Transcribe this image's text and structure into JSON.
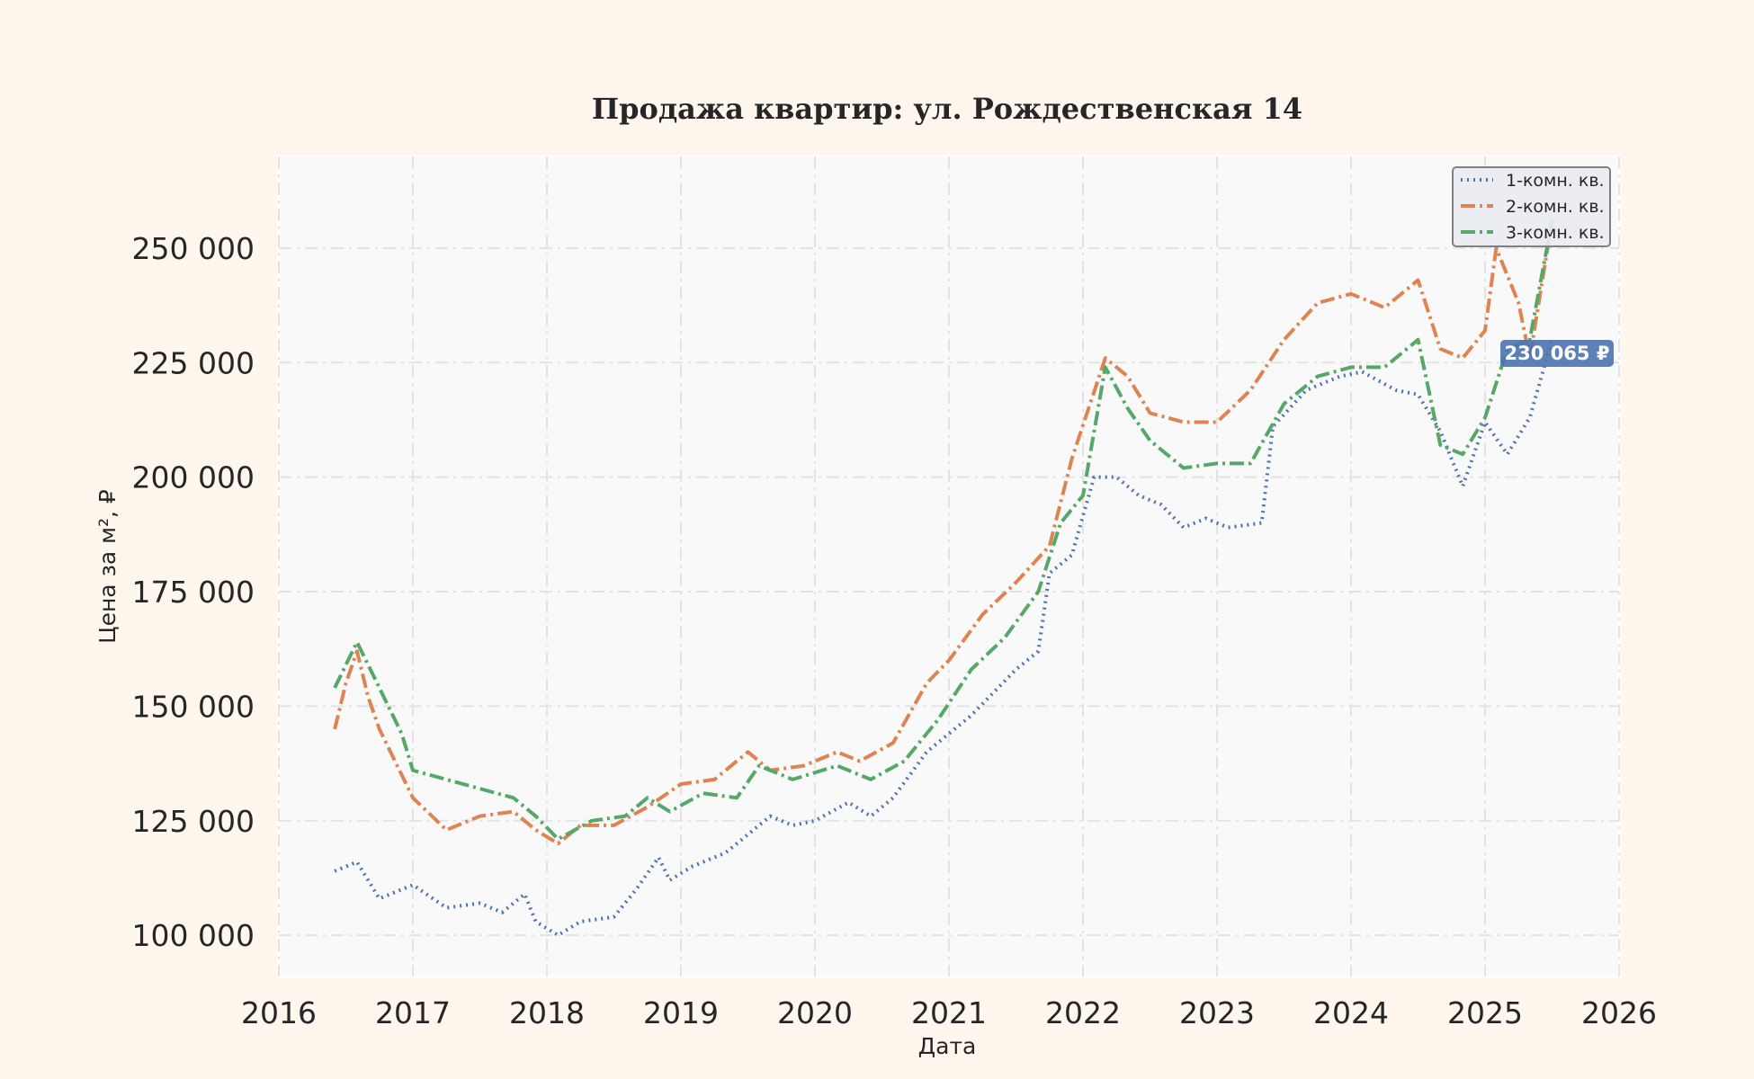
{
  "chart_data": {
    "type": "line",
    "title": "Продажа квартир: ул. Рождественская 14",
    "xlabel": "Дата",
    "ylabel": "Цена за м², ₽",
    "xlim": [
      "2016",
      "2026"
    ],
    "ylim": [
      91000,
      270000
    ],
    "x_ticks": [
      "2016",
      "2017",
      "2018",
      "2019",
      "2020",
      "2021",
      "2022",
      "2023",
      "2024",
      "2025",
      "2026"
    ],
    "y_ticks": [
      100000,
      125000,
      150000,
      175000,
      200000,
      225000,
      250000
    ],
    "y_tick_labels": [
      "100 000",
      "125 000",
      "150 000",
      "175 000",
      "200 000",
      "225 000",
      "250 000"
    ],
    "grid": true,
    "legend_position": "top-right",
    "last_value_label": "230 065 ₽",
    "series": [
      {
        "name": "1-комн. кв.",
        "color": "#4c72b0",
        "style": "dotted",
        "points": [
          [
            "2016-06",
            114000
          ],
          [
            "2016-08",
            116000
          ],
          [
            "2016-10",
            108000
          ],
          [
            "2017-01",
            111000
          ],
          [
            "2017-04",
            106000
          ],
          [
            "2017-07",
            107000
          ],
          [
            "2017-09",
            105000
          ],
          [
            "2017-11",
            109000
          ],
          [
            "2017-12",
            103000
          ],
          [
            "2018-02",
            100000
          ],
          [
            "2018-04",
            103000
          ],
          [
            "2018-07",
            104000
          ],
          [
            "2018-09",
            110000
          ],
          [
            "2018-11",
            117000
          ],
          [
            "2018-12",
            112000
          ],
          [
            "2019-02",
            115000
          ],
          [
            "2019-05",
            118000
          ],
          [
            "2019-07",
            122000
          ],
          [
            "2019-09",
            126000
          ],
          [
            "2019-11",
            124000
          ],
          [
            "2020-01",
            125000
          ],
          [
            "2020-04",
            129000
          ],
          [
            "2020-06",
            126000
          ],
          [
            "2020-08",
            130000
          ],
          [
            "2020-11",
            140000
          ],
          [
            "2021-01",
            144000
          ],
          [
            "2021-03",
            148000
          ],
          [
            "2021-05",
            153000
          ],
          [
            "2021-07",
            158000
          ],
          [
            "2021-09",
            162000
          ],
          [
            "2021-10",
            179000
          ],
          [
            "2021-12",
            183000
          ],
          [
            "2022-02",
            200000
          ],
          [
            "2022-04",
            200000
          ],
          [
            "2022-06",
            196000
          ],
          [
            "2022-08",
            194000
          ],
          [
            "2022-10",
            189000
          ],
          [
            "2022-12",
            191000
          ],
          [
            "2023-02",
            189000
          ],
          [
            "2023-05",
            190000
          ],
          [
            "2023-06",
            211000
          ],
          [
            "2023-09",
            219000
          ],
          [
            "2023-12",
            222000
          ],
          [
            "2024-02",
            223000
          ],
          [
            "2024-05",
            219000
          ],
          [
            "2024-07",
            218000
          ],
          [
            "2024-09",
            210000
          ],
          [
            "2024-11",
            198000
          ],
          [
            "2025-01",
            212000
          ],
          [
            "2025-03",
            205000
          ],
          [
            "2025-05",
            213000
          ],
          [
            "2025-07",
            230065
          ]
        ]
      },
      {
        "name": "2-комн. кв.",
        "color": "#dd8452",
        "style": "dashdot",
        "points": [
          [
            "2016-06",
            145000
          ],
          [
            "2016-07",
            155000
          ],
          [
            "2016-08",
            162000
          ],
          [
            "2016-09",
            152000
          ],
          [
            "2016-10",
            145000
          ],
          [
            "2016-12",
            135000
          ],
          [
            "2017-01",
            130000
          ],
          [
            "2017-04",
            123000
          ],
          [
            "2017-07",
            126000
          ],
          [
            "2017-10",
            127000
          ],
          [
            "2017-12",
            123000
          ],
          [
            "2018-02",
            120000
          ],
          [
            "2018-04",
            124000
          ],
          [
            "2018-07",
            124000
          ],
          [
            "2018-10",
            128000
          ],
          [
            "2019-01",
            133000
          ],
          [
            "2019-04",
            134000
          ],
          [
            "2019-07",
            140000
          ],
          [
            "2019-09",
            136000
          ],
          [
            "2019-12",
            137000
          ],
          [
            "2020-03",
            140000
          ],
          [
            "2020-05",
            138000
          ],
          [
            "2020-08",
            142000
          ],
          [
            "2020-11",
            155000
          ],
          [
            "2021-01",
            160000
          ],
          [
            "2021-04",
            170000
          ],
          [
            "2021-07",
            177000
          ],
          [
            "2021-10",
            185000
          ],
          [
            "2021-12",
            204000
          ],
          [
            "2022-03",
            226000
          ],
          [
            "2022-05",
            222000
          ],
          [
            "2022-07",
            214000
          ],
          [
            "2022-10",
            212000
          ],
          [
            "2023-01",
            212000
          ],
          [
            "2023-04",
            219000
          ],
          [
            "2023-07",
            230000
          ],
          [
            "2023-10",
            238000
          ],
          [
            "2024-01",
            240000
          ],
          [
            "2024-04",
            237000
          ],
          [
            "2024-07",
            243000
          ],
          [
            "2024-09",
            228000
          ],
          [
            "2024-11",
            226000
          ],
          [
            "2025-01",
            232000
          ],
          [
            "2025-02",
            250000
          ],
          [
            "2025-04",
            238000
          ],
          [
            "2025-05",
            226000
          ],
          [
            "2025-07",
            256000
          ]
        ]
      },
      {
        "name": "3-комн. кв.",
        "color": "#55a868",
        "style": "dashdot",
        "points": [
          [
            "2016-06",
            154000
          ],
          [
            "2016-08",
            164000
          ],
          [
            "2016-10",
            154000
          ],
          [
            "2016-12",
            144000
          ],
          [
            "2017-01",
            136000
          ],
          [
            "2017-04",
            134000
          ],
          [
            "2017-07",
            132000
          ],
          [
            "2017-10",
            130000
          ],
          [
            "2017-12",
            126000
          ],
          [
            "2018-02",
            121000
          ],
          [
            "2018-05",
            125000
          ],
          [
            "2018-08",
            126000
          ],
          [
            "2018-10",
            130000
          ],
          [
            "2018-12",
            127000
          ],
          [
            "2019-03",
            131000
          ],
          [
            "2019-06",
            130000
          ],
          [
            "2019-08",
            137000
          ],
          [
            "2019-11",
            134000
          ],
          [
            "2020-03",
            137000
          ],
          [
            "2020-06",
            134000
          ],
          [
            "2020-09",
            138000
          ],
          [
            "2020-12",
            147000
          ],
          [
            "2021-03",
            158000
          ],
          [
            "2021-06",
            165000
          ],
          [
            "2021-09",
            175000
          ],
          [
            "2021-11",
            190000
          ],
          [
            "2022-01",
            196000
          ],
          [
            "2022-03",
            224000
          ],
          [
            "2022-05",
            215000
          ],
          [
            "2022-07",
            208000
          ],
          [
            "2022-10",
            202000
          ],
          [
            "2023-01",
            203000
          ],
          [
            "2023-04",
            203000
          ],
          [
            "2023-07",
            216000
          ],
          [
            "2023-10",
            222000
          ],
          [
            "2024-01",
            224000
          ],
          [
            "2024-04",
            224000
          ],
          [
            "2024-07",
            230000
          ],
          [
            "2024-09",
            207000
          ],
          [
            "2024-11",
            205000
          ],
          [
            "2025-01",
            213000
          ],
          [
            "2025-03",
            228000
          ],
          [
            "2025-05",
            230000
          ],
          [
            "2025-07",
            256000
          ]
        ]
      }
    ]
  }
}
